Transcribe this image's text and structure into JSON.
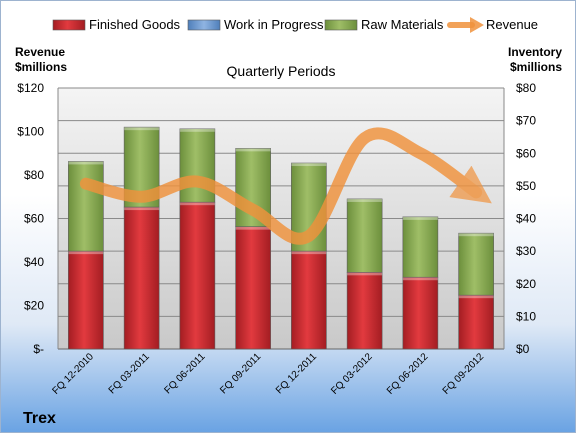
{
  "chart_data": {
    "type": "bar",
    "stacked": true,
    "title": "Quarterly Periods",
    "company": "Trex",
    "left_axis_title": [
      "Revenue",
      "$millions"
    ],
    "right_axis_title": [
      "Inventory",
      "$millions"
    ],
    "categories": [
      "FQ 12-2010",
      "FQ 03-2011",
      "FQ 06-2011",
      "FQ 09-2011",
      "FQ 12-2011",
      "FQ 03-2012",
      "FQ 06-2012",
      "FQ 09-2012"
    ],
    "series": [
      {
        "name": "Finished Goods",
        "axis": "right",
        "color": "#c8252b",
        "values": [
          30,
          43.5,
          45,
          37.5,
          30,
          23.5,
          22,
          16.5
        ]
      },
      {
        "name": "Work in Progress",
        "axis": "right",
        "color": "#6f9bd1",
        "values": [
          0,
          0,
          0,
          0,
          0,
          0,
          0,
          0
        ]
      },
      {
        "name": "Raw Materials",
        "axis": "right",
        "color": "#8aac52",
        "values": [
          27.5,
          24.5,
          22.5,
          24,
          27,
          22.5,
          18.5,
          19
        ]
      }
    ],
    "line_series": {
      "name": "Revenue",
      "axis": "left",
      "color": "#f0923c",
      "values": [
        76,
        70,
        77,
        64,
        52,
        97,
        90,
        72
      ]
    },
    "left_axis": {
      "min": 0,
      "max": 120,
      "step": 20,
      "tick_labels": [
        "$-",
        "$20",
        "$40",
        "$60",
        "$80",
        "$100",
        "$120"
      ]
    },
    "right_axis": {
      "min": 0,
      "max": 80,
      "step": 10,
      "tick_labels": [
        "$0",
        "$10",
        "$20",
        "$30",
        "$40",
        "$50",
        "$60",
        "$70",
        "$80"
      ]
    },
    "grid": true,
    "legend_position": "top"
  }
}
